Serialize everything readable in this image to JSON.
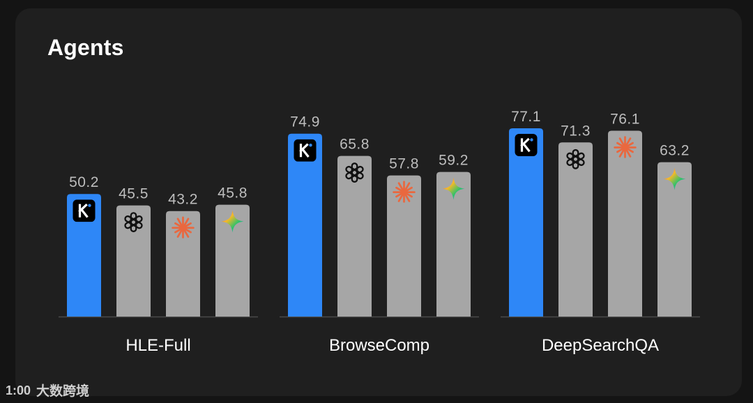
{
  "header": {
    "title": "Agents"
  },
  "watermark": {
    "text": "大数跨境",
    "logo_text": "1:00"
  },
  "colors": {
    "highlight_bar": "#2e87f7",
    "other_bar": "#a6a6a6",
    "value_label": "#bdbdbd",
    "axis_line": "#4a4a4a",
    "category_label": "#ffffff"
  },
  "models": [
    {
      "icon": "kimi-k-icon"
    },
    {
      "icon": "openai-knot-icon"
    },
    {
      "icon": "anthropic-star-icon"
    },
    {
      "icon": "gemini-sparkle-icon"
    }
  ],
  "chart_data": {
    "type": "bar",
    "title": "Agents",
    "categories": [
      "HLE-Full",
      "BrowseComp",
      "DeepSearchQA"
    ],
    "series": [
      {
        "icon": "kimi-k-icon",
        "values": [
          50.2,
          74.9,
          77.1
        ]
      },
      {
        "icon": "openai-knot-icon",
        "values": [
          45.5,
          65.8,
          71.3
        ]
      },
      {
        "icon": "anthropic-star-icon",
        "values": [
          43.2,
          57.8,
          76.1
        ]
      },
      {
        "icon": "gemini-sparkle-icon",
        "values": [
          45.8,
          59.2,
          63.2
        ]
      }
    ],
    "ylim": [
      0,
      77.1
    ],
    "grid": false,
    "legend": "none"
  }
}
